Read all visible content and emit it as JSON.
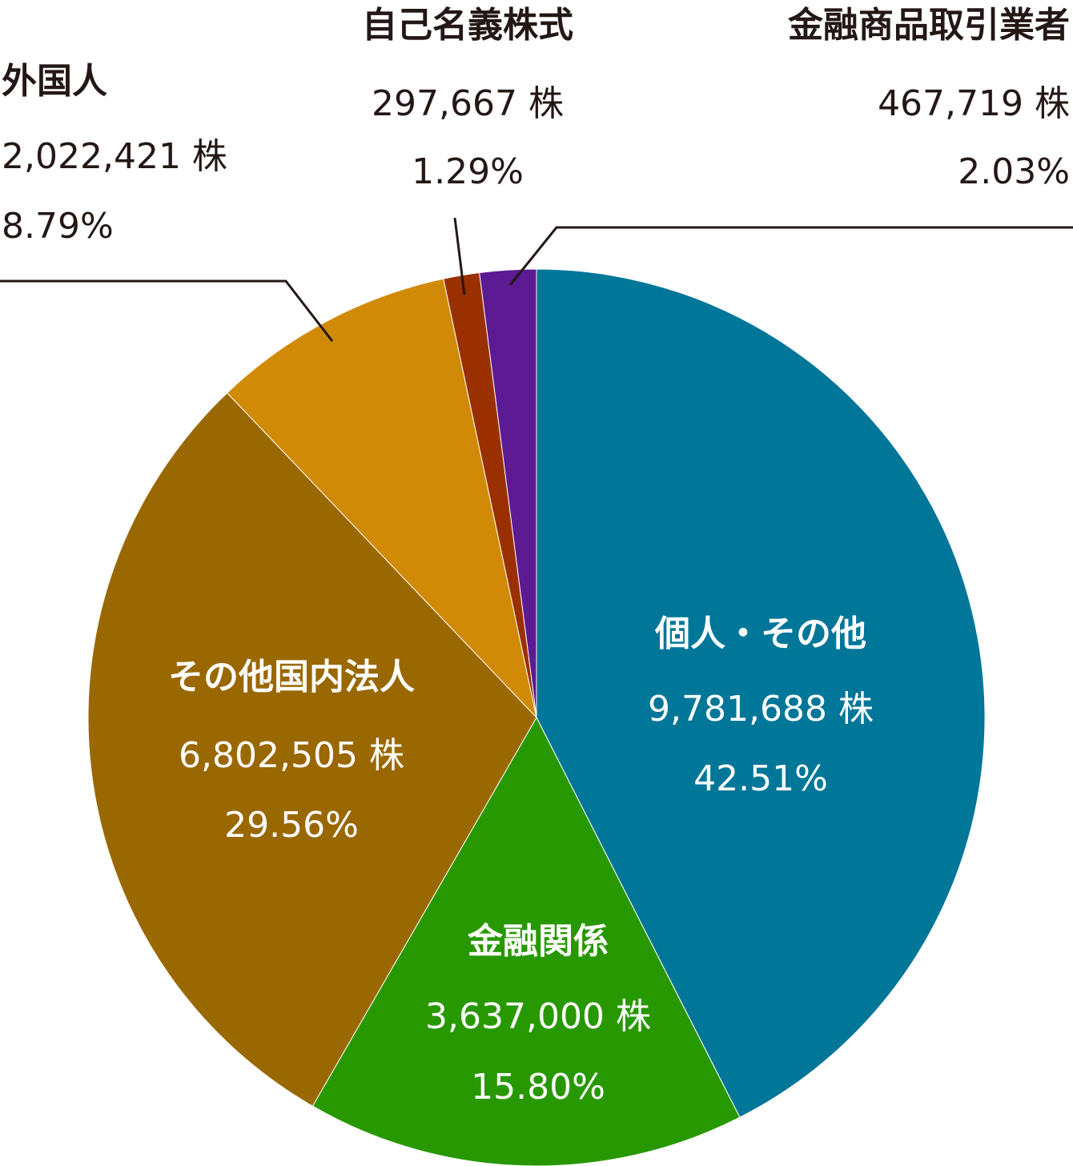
{
  "chart_data": {
    "type": "pie",
    "unit": "株",
    "start": "12 o'clock",
    "direction": "clockwise",
    "slices": [
      {
        "name": "個人・その他",
        "value": 9781688,
        "value_label": "9,781,688 株",
        "percent": 42.51,
        "percent_label": "42.51%",
        "color": "#007699",
        "label_position": "inside"
      },
      {
        "name": "金融関係",
        "value": 3637000,
        "value_label": "3,637,000 株",
        "percent": 15.8,
        "percent_label": "15.80%",
        "color": "#289800",
        "label_position": "inside"
      },
      {
        "name": "その他国内法人",
        "value": 6802505,
        "value_label": "6,802,505 株",
        "percent": 29.56,
        "percent_label": "29.56%",
        "color": "#9a6800",
        "label_position": "inside"
      },
      {
        "name": "外国人",
        "value": 2022421,
        "value_label": "2,022,421 株",
        "percent": 8.79,
        "percent_label": "8.79%",
        "color": "#d18a06",
        "label_position": "outside-top-left"
      },
      {
        "name": "自己名義株式",
        "value": 297667,
        "value_label": "297,667 株",
        "percent": 1.29,
        "percent_label": "1.29%",
        "color": "#9a3000",
        "label_position": "outside-top"
      },
      {
        "name": "金融商品取引業者",
        "value": 467719,
        "value_label": "467,719 株",
        "percent": 2.03,
        "percent_label": "2.03%",
        "color": "#5c1a93",
        "label_position": "outside-top-right"
      }
    ]
  }
}
